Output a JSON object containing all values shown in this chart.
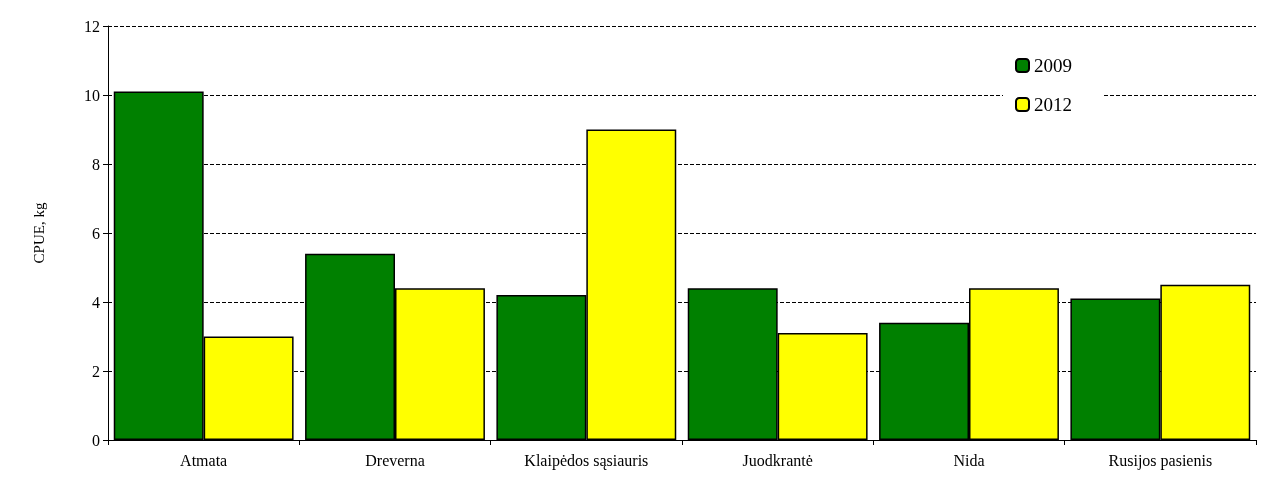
{
  "chart_data": {
    "type": "bar",
    "ylabel": "CPUE, kg",
    "categories": [
      "Atmata",
      "Dreverna",
      "Klaipėdos sąsiauris",
      "Juodkrantė",
      "Nida",
      "Rusijos pasienis"
    ],
    "series": [
      {
        "name": "2009",
        "color": "#008000",
        "values": [
          10.1,
          5.4,
          4.2,
          4.4,
          3.4,
          4.1
        ]
      },
      {
        "name": "2012",
        "color": "#ffff00",
        "values": [
          3.0,
          4.4,
          9.0,
          3.1,
          4.4,
          4.5
        ]
      }
    ],
    "ylim": [
      0,
      12
    ],
    "yticks": [
      0,
      2,
      4,
      6,
      8,
      10,
      12
    ],
    "grid": "y",
    "legend": "top right"
  }
}
